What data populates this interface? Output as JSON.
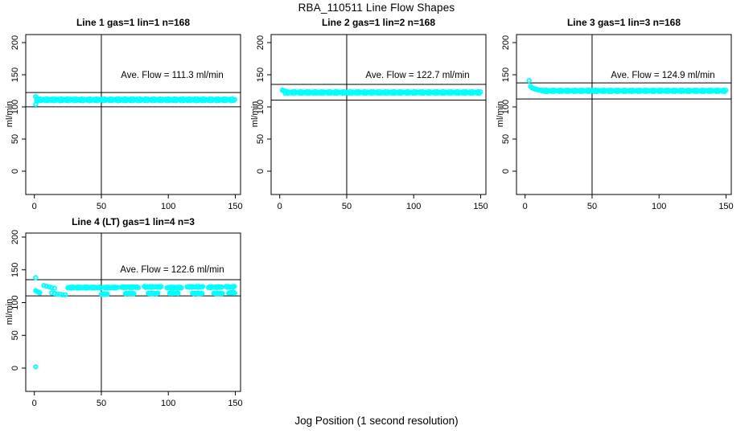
{
  "title": "RBA_110511  Line Flow Shapes",
  "xlabel": "Jog Position (1 second resolution)",
  "ylabel": "ml/min",
  "colors": {
    "points": "#00FFFF",
    "axis": "#000000",
    "background": "#FFFFFF"
  },
  "chart_data": [
    {
      "type": "scatter",
      "title": "Line 1 gas=1 lin=1 n=168",
      "line": 1,
      "gas": 1,
      "lin": 1,
      "n": 168,
      "annotation": "Ave. Flow =  111.3  ml/min",
      "ave_flow": 111.3,
      "xlim": [
        0,
        150
      ],
      "ylim": [
        0,
        200
      ],
      "xticks": [
        0,
        50,
        100,
        150
      ],
      "yticks": [
        0,
        50,
        100,
        150,
        200
      ],
      "vline_x": 50,
      "ref_lines": {
        "upper": 122.4,
        "lower": 100.2
      },
      "points": [
        [
          1,
          116
        ],
        [
          1,
          104
        ],
        [
          2,
          113
        ],
        [
          2,
          109
        ]
      ],
      "runs": [
        {
          "x0": 2,
          "x1": 150,
          "y": 111,
          "jitter": 1.6
        }
      ]
    },
    {
      "type": "scatter",
      "title": "Line 2 gas=1 lin=2 n=168",
      "line": 2,
      "gas": 1,
      "lin": 2,
      "n": 168,
      "annotation": "Ave. Flow =  122.7  ml/min",
      "ave_flow": 122.7,
      "xlim": [
        0,
        150
      ],
      "ylim": [
        0,
        200
      ],
      "xticks": [
        0,
        50,
        100,
        150
      ],
      "yticks": [
        0,
        50,
        100,
        150,
        200
      ],
      "vline_x": 50,
      "ref_lines": {
        "upper": 135.0,
        "lower": 110.4
      },
      "points": [
        [
          2,
          126
        ],
        [
          3,
          125
        ],
        [
          4,
          124.5
        ],
        [
          5,
          124
        ]
      ],
      "runs": [
        {
          "x0": 4,
          "x1": 150,
          "y": 122.4,
          "jitter": 1.5
        }
      ]
    },
    {
      "type": "scatter",
      "title": "Line 3 gas=1 lin=3 n=168",
      "line": 3,
      "gas": 1,
      "lin": 3,
      "n": 168,
      "annotation": "Ave. Flow =  124.9  ml/min",
      "ave_flow": 124.9,
      "xlim": [
        0,
        150
      ],
      "ylim": [
        0,
        200
      ],
      "xticks": [
        0,
        50,
        100,
        150
      ],
      "yticks": [
        0,
        50,
        100,
        150,
        200
      ],
      "vline_x": 50,
      "ref_lines": {
        "upper": 137.4,
        "lower": 112.4
      },
      "points": [
        [
          3,
          141
        ],
        [
          4,
          132
        ],
        [
          5,
          130
        ],
        [
          6,
          129
        ],
        [
          7,
          128
        ],
        [
          8,
          127.5
        ],
        [
          9,
          127
        ],
        [
          10,
          126.5
        ],
        [
          11,
          126
        ],
        [
          12,
          126
        ],
        [
          13,
          125.5
        ]
      ],
      "runs": [
        {
          "x0": 13,
          "x1": 150,
          "y": 125,
          "jitter": 1.3
        }
      ]
    },
    {
      "type": "scatter",
      "title": "Line 4 (LT) gas=1 lin=4 n=3",
      "line": 4,
      "gas": 1,
      "lin": 4,
      "n": 3,
      "annotation": "Ave. Flow =  122.6  ml/min",
      "ave_flow": 122.6,
      "xlim": [
        0,
        150
      ],
      "ylim": [
        0,
        200
      ],
      "xticks": [
        0,
        50,
        100,
        150
      ],
      "yticks": [
        0,
        50,
        100,
        150,
        200
      ],
      "vline_x": 50,
      "ref_lines": {
        "upper": 134.9,
        "lower": 110.3
      },
      "points": [
        [
          1,
          2
        ],
        [
          1,
          138
        ],
        [
          7,
          126
        ],
        [
          9,
          125
        ],
        [
          11,
          124
        ],
        [
          13,
          123
        ],
        [
          15,
          122
        ],
        [
          1,
          118
        ],
        [
          2,
          117
        ],
        [
          3,
          116
        ],
        [
          4,
          115
        ],
        [
          13,
          115
        ],
        [
          15,
          114
        ],
        [
          17,
          113
        ],
        [
          19,
          113
        ],
        [
          21,
          112
        ],
        [
          23,
          112
        ]
      ],
      "runs": [
        {
          "x0": 25,
          "x1": 50,
          "y": 123,
          "jitter": 0.9
        },
        {
          "x0": 52,
          "x1": 62,
          "y": 123,
          "jitter": 0.8
        },
        {
          "x0": 65,
          "x1": 78,
          "y": 123.5,
          "jitter": 0.8
        },
        {
          "x0": 82,
          "x1": 95,
          "y": 124,
          "jitter": 0.8
        },
        {
          "x0": 99,
          "x1": 110,
          "y": 123,
          "jitter": 0.8
        },
        {
          "x0": 114,
          "x1": 126,
          "y": 124,
          "jitter": 0.8
        },
        {
          "x0": 130,
          "x1": 140,
          "y": 123.5,
          "jitter": 0.8
        },
        {
          "x0": 143,
          "x1": 150,
          "y": 124,
          "jitter": 0.8
        },
        {
          "x0": 50,
          "x1": 55,
          "y": 113,
          "jitter": 0.6
        },
        {
          "x0": 68,
          "x1": 75,
          "y": 114,
          "jitter": 0.6
        },
        {
          "x0": 85,
          "x1": 93,
          "y": 114,
          "jitter": 0.6
        },
        {
          "x0": 101,
          "x1": 108,
          "y": 114.5,
          "jitter": 0.6
        },
        {
          "x0": 118,
          "x1": 126,
          "y": 114,
          "jitter": 0.6
        },
        {
          "x0": 134,
          "x1": 141,
          "y": 114,
          "jitter": 0.6
        },
        {
          "x0": 145,
          "x1": 150,
          "y": 115,
          "jitter": 0.6
        }
      ]
    }
  ]
}
